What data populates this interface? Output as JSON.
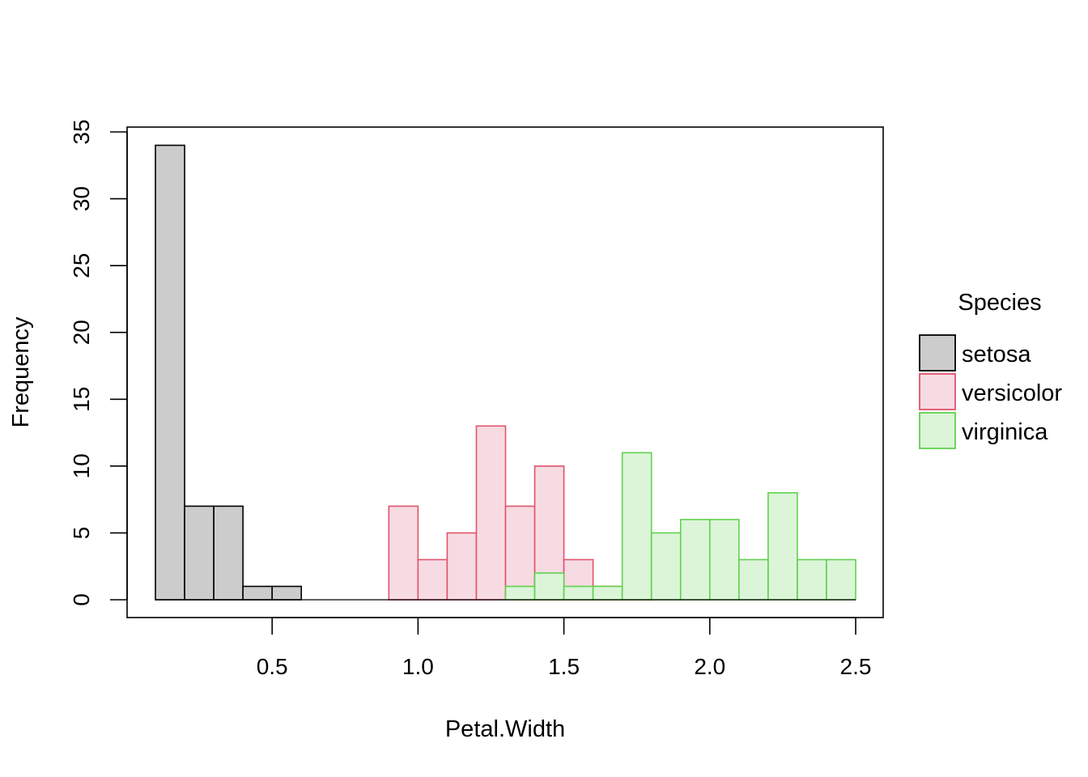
{
  "chart_data": {
    "type": "bar",
    "subtype": "overlapping-histogram",
    "title": "",
    "xlabel": "Petal.Width",
    "ylabel": "Frequency",
    "xlim": [
      0.1,
      2.5
    ],
    "ylim": [
      0,
      35
    ],
    "bin_width": 0.1,
    "x_ticks": [
      0.5,
      1.0,
      1.5,
      2.0,
      2.5
    ],
    "x_tick_labels": [
      "0.5",
      "1.0",
      "1.5",
      "2.0",
      "2.5"
    ],
    "y_ticks": [
      0,
      5,
      10,
      15,
      20,
      25,
      30,
      35
    ],
    "y_tick_labels": [
      "0",
      "5",
      "10",
      "15",
      "20",
      "25",
      "30",
      "35"
    ],
    "legend": {
      "title": "Species",
      "position": "right"
    },
    "series": [
      {
        "name": "setosa",
        "fill": "#cccccc",
        "stroke": "#000000",
        "bins": [
          {
            "start": 0.1,
            "end": 0.2,
            "count": 34
          },
          {
            "start": 0.2,
            "end": 0.3,
            "count": 7
          },
          {
            "start": 0.3,
            "end": 0.4,
            "count": 7
          },
          {
            "start": 0.4,
            "end": 0.5,
            "count": 1
          },
          {
            "start": 0.5,
            "end": 0.6,
            "count": 1
          }
        ]
      },
      {
        "name": "versicolor",
        "fill": "#f7dbe2",
        "stroke": "#df536b",
        "bins": [
          {
            "start": 0.9,
            "end": 1.0,
            "count": 7
          },
          {
            "start": 1.0,
            "end": 1.1,
            "count": 3
          },
          {
            "start": 1.1,
            "end": 1.2,
            "count": 5
          },
          {
            "start": 1.2,
            "end": 1.3,
            "count": 13
          },
          {
            "start": 1.3,
            "end": 1.4,
            "count": 7
          },
          {
            "start": 1.4,
            "end": 1.5,
            "count": 10
          },
          {
            "start": 1.5,
            "end": 1.6,
            "count": 3
          },
          {
            "start": 1.6,
            "end": 1.7,
            "count": 1
          },
          {
            "start": 1.7,
            "end": 1.8,
            "count": 1
          }
        ]
      },
      {
        "name": "virginica",
        "fill": "#dcf5d9",
        "stroke": "#61d04f",
        "bins": [
          {
            "start": 1.3,
            "end": 1.4,
            "count": 1
          },
          {
            "start": 1.4,
            "end": 1.5,
            "count": 2
          },
          {
            "start": 1.5,
            "end": 1.6,
            "count": 1
          },
          {
            "start": 1.6,
            "end": 1.7,
            "count": 1
          },
          {
            "start": 1.7,
            "end": 1.8,
            "count": 11
          },
          {
            "start": 1.8,
            "end": 1.9,
            "count": 5
          },
          {
            "start": 1.9,
            "end": 2.0,
            "count": 6
          },
          {
            "start": 2.0,
            "end": 2.1,
            "count": 6
          },
          {
            "start": 2.1,
            "end": 2.2,
            "count": 3
          },
          {
            "start": 2.2,
            "end": 2.3,
            "count": 8
          },
          {
            "start": 2.3,
            "end": 2.4,
            "count": 3
          },
          {
            "start": 2.4,
            "end": 2.5,
            "count": 3
          }
        ]
      }
    ]
  }
}
